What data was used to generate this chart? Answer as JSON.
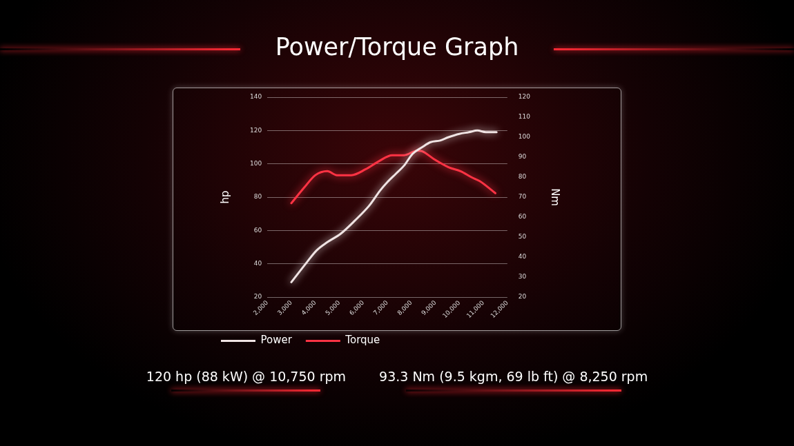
{
  "chart_data": {
    "type": "line",
    "title": "Power/Torque Graph",
    "ylabel": "hp",
    "y2label": "Nm",
    "series": [
      {
        "name": "Power",
        "color": "#f0e4e4",
        "x": [
          3000,
          3650,
          4050,
          4500,
          5050,
          5650,
          6250,
          6700,
          7000,
          7350,
          7700,
          8050,
          8450,
          8800,
          9200,
          9550,
          10000,
          10400,
          10750,
          11100,
          11550
        ],
        "values": [
          29,
          41,
          48,
          53,
          58,
          66,
          75,
          84,
          89,
          94,
          99,
          106,
          110,
          113,
          114,
          116,
          118,
          119,
          120,
          119,
          119
        ]
      },
      {
        "name": "Torque",
        "color": "#ff3344",
        "axis": "y2",
        "x": [
          3000,
          3550,
          4000,
          4500,
          4900,
          5500,
          6100,
          6650,
          7200,
          7700,
          8250,
          8450,
          8950,
          9550,
          10050,
          10500,
          10850,
          11500
        ],
        "values": [
          67,
          75,
          81,
          83,
          81,
          81,
          84,
          88,
          91,
          91,
          93.3,
          93,
          89,
          85,
          83,
          80,
          78,
          72
        ]
      }
    ],
    "xlim": [
      2000,
      12000
    ],
    "xticks": [
      {
        "value": 2000,
        "label": "2,000"
      },
      {
        "value": 3000,
        "label": "3,000"
      },
      {
        "value": 4000,
        "label": "4,000"
      },
      {
        "value": 5000,
        "label": "5,000"
      },
      {
        "value": 6000,
        "label": "6,000"
      },
      {
        "value": 7000,
        "label": "7,000"
      },
      {
        "value": 8000,
        "label": "8,000"
      },
      {
        "value": 9000,
        "label": "9,000"
      },
      {
        "value": 10000,
        "label": "10,000"
      },
      {
        "value": 11000,
        "label": "11,000"
      },
      {
        "value": 12000,
        "label": "12,000"
      }
    ],
    "ylim": [
      20,
      140
    ],
    "yticks": [
      20,
      40,
      60,
      80,
      100,
      120,
      140
    ],
    "y2lim": [
      20,
      120
    ],
    "y2ticks": [
      20,
      30,
      40,
      50,
      60,
      70,
      80,
      90,
      100,
      110,
      120
    ],
    "grid": "y",
    "legend": "bottom left",
    "marker": "none",
    "annotations": [
      "120 hp (88 kW) @ 10,750 rpm",
      "93.3 Nm (9.5 kgm, 69 lb ft) @ 8,250 rpm"
    ]
  }
}
